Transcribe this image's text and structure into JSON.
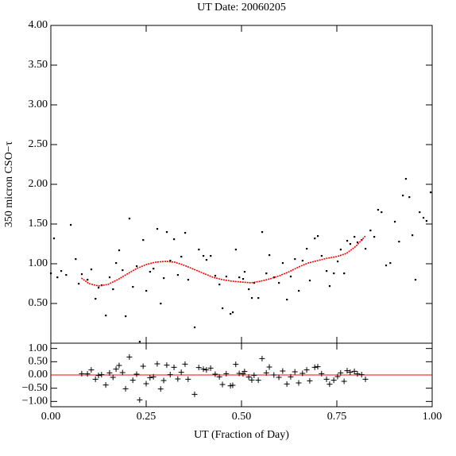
{
  "chart_data": [
    {
      "type": "scatter",
      "title": "UT Date: 20060205",
      "y_label": "350 micron CSO−τ",
      "ylim": [
        0,
        4
      ],
      "xlim": [
        0,
        1
      ],
      "yticks": [
        {
          "value": 0.5,
          "label": "0.50"
        },
        {
          "value": 1,
          "label": "1.00"
        },
        {
          "value": 1.5,
          "label": "1.50"
        },
        {
          "value": 2,
          "label": "2.00"
        },
        {
          "value": 2.5,
          "label": "2.50"
        },
        {
          "value": 3,
          "label": "3.00"
        },
        {
          "value": 3.5,
          "label": "3.50"
        },
        {
          "value": 4,
          "label": "4.00"
        }
      ],
      "points": {
        "color": "#000000",
        "x": [
          0.0,
          0.008,
          0.017,
          0.027,
          0.04,
          0.052,
          0.065,
          0.073,
          0.081,
          0.096,
          0.106,
          0.117,
          0.125,
          0.133,
          0.144,
          0.154,
          0.163,
          0.171,
          0.179,
          0.188,
          0.196,
          0.206,
          0.215,
          0.225,
          0.233,
          0.242,
          0.25,
          0.26,
          0.269,
          0.279,
          0.288,
          0.296,
          0.304,
          0.313,
          0.323,
          0.333,
          0.342,
          0.352,
          0.36,
          0.377,
          0.388,
          0.4,
          0.408,
          0.419,
          0.431,
          0.442,
          0.45,
          0.46,
          0.471,
          0.477,
          0.485,
          0.494,
          0.504,
          0.508,
          0.519,
          0.527,
          0.533,
          0.544,
          0.554,
          0.565,
          0.573,
          0.585,
          0.598,
          0.608,
          0.619,
          0.629,
          0.64,
          0.65,
          0.66,
          0.671,
          0.679,
          0.692,
          0.7,
          0.71,
          0.723,
          0.731,
          0.742,
          0.752,
          0.76,
          0.769,
          0.777,
          0.785,
          0.796,
          0.804,
          0.815,
          0.825,
          0.838,
          0.848,
          0.858,
          0.867,
          0.879,
          0.89,
          0.902,
          0.913,
          0.923,
          0.931,
          0.94,
          0.948,
          0.956,
          0.967,
          0.977,
          0.985,
          0.996
        ],
        "values": [
          0.88,
          1.32,
          0.83,
          0.91,
          0.86,
          1.49,
          1.06,
          0.75,
          0.87,
          0.8,
          0.93,
          0.56,
          0.7,
          0.73,
          0.35,
          0.83,
          0.68,
          1.01,
          1.17,
          0.92,
          0.34,
          1.57,
          0.71,
          0.97,
          0.02,
          1.3,
          0.66,
          0.9,
          0.94,
          1.44,
          0.5,
          0.82,
          1.4,
          1.04,
          1.31,
          0.86,
          1.09,
          1.39,
          0.8,
          0.2,
          1.18,
          1.1,
          1.05,
          1.1,
          0.85,
          0.74,
          0.44,
          0.84,
          0.37,
          0.39,
          1.18,
          0.83,
          0.81,
          0.9,
          0.68,
          0.57,
          0.76,
          0.57,
          1.4,
          0.88,
          1.11,
          0.83,
          0.76,
          1.01,
          0.55,
          0.84,
          1.06,
          0.66,
          1.04,
          1.19,
          0.79,
          1.32,
          1.35,
          1.1,
          0.91,
          0.72,
          0.88,
          1.03,
          1.18,
          0.88,
          1.29,
          1.25,
          1.34,
          1.27,
          1.3,
          1.19,
          1.42,
          1.34,
          1.68,
          1.65,
          0.98,
          1.01,
          1.53,
          1.28,
          1.86,
          2.07,
          1.84,
          1.36,
          0.8,
          1.65,
          1.58,
          1.54,
          1.9
        ]
      },
      "fit": {
        "color": "#ff0000",
        "x": [
          0.08,
          0.1,
          0.125,
          0.15,
          0.175,
          0.2,
          0.225,
          0.25,
          0.275,
          0.3,
          0.325,
          0.35,
          0.375,
          0.4,
          0.425,
          0.45,
          0.475,
          0.5,
          0.525,
          0.55,
          0.575,
          0.6,
          0.625,
          0.65,
          0.675,
          0.7,
          0.725,
          0.75,
          0.775,
          0.8,
          0.825
        ],
        "values": [
          0.82,
          0.75,
          0.72,
          0.74,
          0.8,
          0.87,
          0.94,
          0.99,
          1.02,
          1.03,
          1.02,
          0.98,
          0.93,
          0.88,
          0.83,
          0.8,
          0.78,
          0.77,
          0.76,
          0.78,
          0.81,
          0.85,
          0.9,
          0.96,
          1.01,
          1.04,
          1.07,
          1.09,
          1.13,
          1.22,
          1.35
        ]
      }
    },
    {
      "type": "scatter",
      "marker": "plus",
      "x_label": "UT (Fraction of Day)",
      "xlim": [
        0,
        1
      ],
      "ylim": [
        -1.2,
        1.2
      ],
      "xticks": [
        {
          "value": 0,
          "label": "0.00"
        },
        {
          "value": 0.25,
          "label": "0.25"
        },
        {
          "value": 0.5,
          "label": "0.50"
        },
        {
          "value": 0.75,
          "label": "0.75"
        },
        {
          "value": 1,
          "label": "1.00"
        }
      ],
      "yticks": [
        {
          "value": -1,
          "label": "−1.00"
        },
        {
          "value": -0.5,
          "label": "−0.50"
        },
        {
          "value": 0,
          "label": "0.00"
        },
        {
          "value": 0.5,
          "label": "0.50"
        },
        {
          "value": 1,
          "label": "1.00"
        }
      ],
      "hline": 0,
      "hline_color": "#ff0000",
      "color": "#000000",
      "x": [
        0.081,
        0.096,
        0.106,
        0.117,
        0.125,
        0.133,
        0.144,
        0.154,
        0.163,
        0.171,
        0.179,
        0.188,
        0.196,
        0.206,
        0.215,
        0.225,
        0.233,
        0.242,
        0.25,
        0.26,
        0.269,
        0.279,
        0.288,
        0.296,
        0.304,
        0.313,
        0.323,
        0.333,
        0.342,
        0.352,
        0.36,
        0.377,
        0.388,
        0.4,
        0.408,
        0.419,
        0.431,
        0.442,
        0.45,
        0.46,
        0.471,
        0.477,
        0.485,
        0.494,
        0.504,
        0.508,
        0.519,
        0.527,
        0.533,
        0.544,
        0.554,
        0.565,
        0.573,
        0.585,
        0.598,
        0.608,
        0.619,
        0.629,
        0.64,
        0.65,
        0.66,
        0.671,
        0.679,
        0.692,
        0.7,
        0.71,
        0.723,
        0.731,
        0.742,
        0.752,
        0.76,
        0.769,
        0.777,
        0.785,
        0.796,
        0.804,
        0.815,
        0.825
      ],
      "values": [
        0.05,
        0.04,
        0.19,
        -0.16,
        -0.02,
        0.01,
        -0.38,
        0.08,
        -0.09,
        0.22,
        0.36,
        0.09,
        -0.52,
        0.68,
        -0.2,
        0.03,
        -0.94,
        0.33,
        -0.33,
        -0.1,
        -0.07,
        0.42,
        -0.53,
        -0.21,
        0.37,
        0.01,
        0.29,
        -0.15,
        0.1,
        0.41,
        -0.16,
        -0.73,
        0.28,
        0.22,
        0.19,
        0.26,
        0.03,
        -0.07,
        -0.36,
        0.05,
        -0.41,
        -0.39,
        0.4,
        0.06,
        0.04,
        0.13,
        -0.08,
        -0.19,
        -0.01,
        -0.2,
        0.62,
        0.08,
        0.3,
        0.0,
        -0.09,
        0.15,
        -0.34,
        -0.07,
        0.12,
        -0.3,
        0.06,
        0.19,
        -0.22,
        0.29,
        0.31,
        0.05,
        -0.16,
        -0.35,
        -0.2,
        -0.06,
        0.08,
        -0.24,
        0.16,
        0.1,
        0.14,
        0.04,
        0.01,
        -0.16
      ]
    }
  ]
}
